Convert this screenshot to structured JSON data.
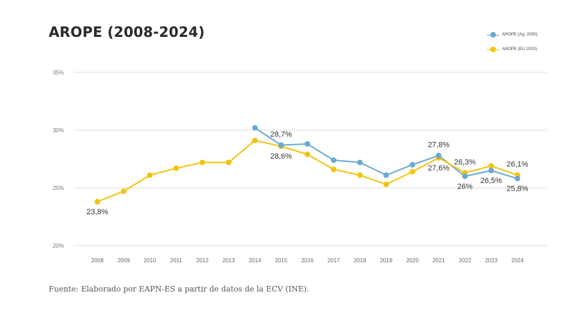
{
  "title": "AROPE (2008-2024)",
  "source": "Fuente: Elaborado por EAPN-ES a partir de datos de la ECV (INE).",
  "legend": [
    {
      "label": "AROPE (Ag. 2030)",
      "color": "#6aaad2"
    },
    {
      "label": "AROPE (EU 2020)",
      "color": "#f2c40f"
    }
  ],
  "chart_data": {
    "type": "line",
    "x": [
      "2008",
      "2009",
      "2010",
      "2011",
      "2012",
      "2013",
      "2014",
      "2015",
      "2016",
      "2017",
      "2018",
      "2019",
      "2020",
      "2021",
      "2022",
      "2023",
      "2024"
    ],
    "ylim": [
      20,
      35
    ],
    "yticks": [
      "20%",
      "25%",
      "30%",
      "35%"
    ],
    "yticks_values": [
      20,
      25,
      30,
      35
    ],
    "grid": true,
    "legend_position": "top-right",
    "series": [
      {
        "name": "AROPE (Ag. 2030)",
        "color": "#6aaad2",
        "values": [
          null,
          null,
          null,
          null,
          null,
          null,
          30.2,
          28.7,
          28.8,
          27.4,
          27.2,
          26.1,
          27.0,
          27.8,
          26.0,
          26.5,
          25.8
        ]
      },
      {
        "name": "AROPE (EU 2020)",
        "color": "#f2c40f",
        "values": [
          23.8,
          24.7,
          26.1,
          26.7,
          27.2,
          27.2,
          29.1,
          28.6,
          27.9,
          26.6,
          26.1,
          25.3,
          26.4,
          27.6,
          26.3,
          26.9,
          26.1
        ]
      }
    ],
    "annotations": [
      {
        "text": "23,8%",
        "x": "2008",
        "y": 23.8,
        "place": "below"
      },
      {
        "text": "28,7%",
        "x": "2015",
        "y": 28.7,
        "place": "above"
      },
      {
        "text": "28,6%",
        "x": "2015",
        "y": 28.6,
        "place": "below"
      },
      {
        "text": "27,8%",
        "x": "2021",
        "y": 27.8,
        "place": "above"
      },
      {
        "text": "27,6%",
        "x": "2021",
        "y": 27.6,
        "place": "below"
      },
      {
        "text": "26,3%",
        "x": "2022",
        "y": 26.3,
        "place": "above"
      },
      {
        "text": "26%",
        "x": "2022",
        "y": 26.0,
        "place": "below"
      },
      {
        "text": "26,5%",
        "x": "2023",
        "y": 26.5,
        "place": "below"
      },
      {
        "text": "26,1%",
        "x": "2024",
        "y": 26.1,
        "place": "above"
      },
      {
        "text": "25,8%",
        "x": "2024",
        "y": 25.8,
        "place": "below"
      }
    ]
  }
}
